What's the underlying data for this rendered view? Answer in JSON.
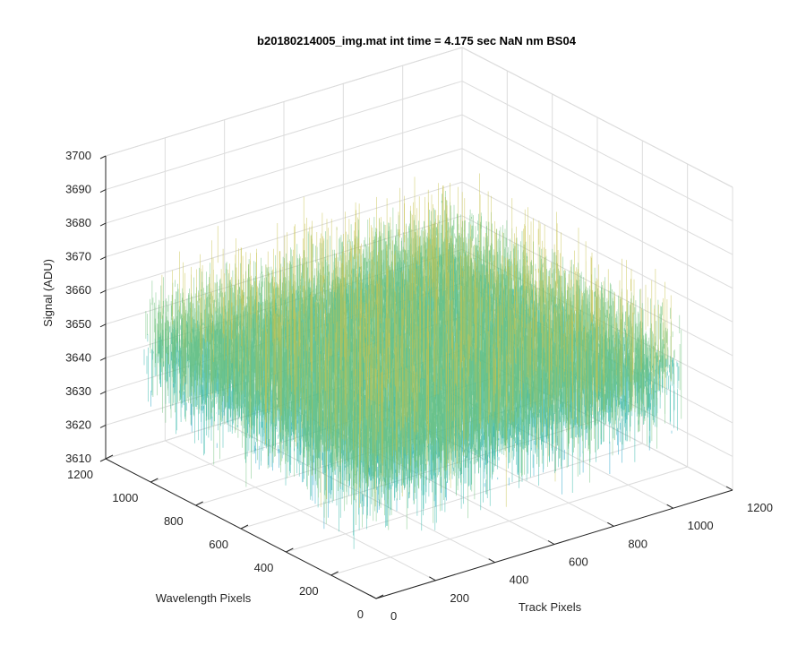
{
  "chart_data": {
    "type": "surface",
    "title": "b20180214005_img.mat int time = 4.175 sec  NaN nm BS04",
    "xlabel": "Track Pixels",
    "ylabel": "Wavelength Pixels",
    "zlabel": "Signal (ADU)",
    "xlim": [
      0,
      1200
    ],
    "ylim": [
      0,
      1200
    ],
    "zlim": [
      3610,
      3700
    ],
    "x_ticks": [
      "0",
      "200",
      "400",
      "600",
      "800",
      "1000",
      "1200"
    ],
    "y_ticks": [
      "0",
      "200",
      "400",
      "600",
      "800",
      "1000",
      "1200"
    ],
    "z_ticks": [
      "3610",
      "3620",
      "3630",
      "3640",
      "3650",
      "3660",
      "3670",
      "3680",
      "3690",
      "3700"
    ],
    "grid": true,
    "surface_extent": {
      "x": [
        0,
        1024
      ],
      "y": [
        0,
        1024
      ]
    },
    "surface_mean": 3650,
    "surface_range": [
      3612,
      3698
    ],
    "colormap": [
      "#0072bd",
      "#1a9fc4",
      "#2fb5a8",
      "#6cc07a",
      "#c8c24e",
      "#e6c840"
    ]
  }
}
